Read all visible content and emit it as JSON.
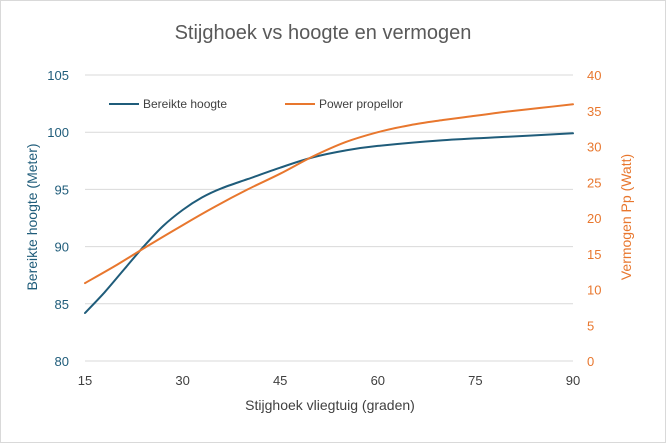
{
  "chart_data": {
    "type": "line",
    "title": "Stijghoek vs hoogte en vermogen",
    "xlabel": "Stijghoek vliegtuig (graden)",
    "ylabel": "Bereikte hoogte (Meter)",
    "y2label": "Vermogen Pp (Watt)",
    "xlim": [
      15,
      90
    ],
    "ylim": [
      80,
      105
    ],
    "y2lim": [
      0,
      40
    ],
    "x_ticks": [
      15,
      30,
      45,
      60,
      75,
      90
    ],
    "y_ticks": [
      80,
      85,
      90,
      95,
      100,
      105
    ],
    "y2_ticks": [
      0,
      5,
      10,
      15,
      20,
      25,
      30,
      35,
      40
    ],
    "grid": "horizontal",
    "legend": "top-left",
    "series": [
      {
        "name": "Bereikte hoogte",
        "axis": "left",
        "color": "#1f5c7a",
        "x": [
          15,
          18,
          21,
          24,
          27,
          30,
          33,
          36,
          40,
          45,
          50,
          55,
          60,
          70,
          80,
          90
        ],
        "y": [
          84.2,
          86.0,
          88.0,
          90.0,
          91.8,
          93.2,
          94.3,
          95.1,
          95.9,
          96.9,
          97.8,
          98.4,
          98.8,
          99.3,
          99.6,
          99.9
        ]
      },
      {
        "name": "Power propellor",
        "axis": "right",
        "color": "#e8772e",
        "x": [
          15,
          20,
          25,
          30,
          35,
          40,
          45,
          50,
          55,
          60,
          65,
          70,
          75,
          80,
          85,
          90
        ],
        "y": [
          10.9,
          13.5,
          16.3,
          19.0,
          21.6,
          24.0,
          26.2,
          28.6,
          30.6,
          32.0,
          33.0,
          33.7,
          34.3,
          34.9,
          35.4,
          35.9
        ]
      }
    ]
  }
}
